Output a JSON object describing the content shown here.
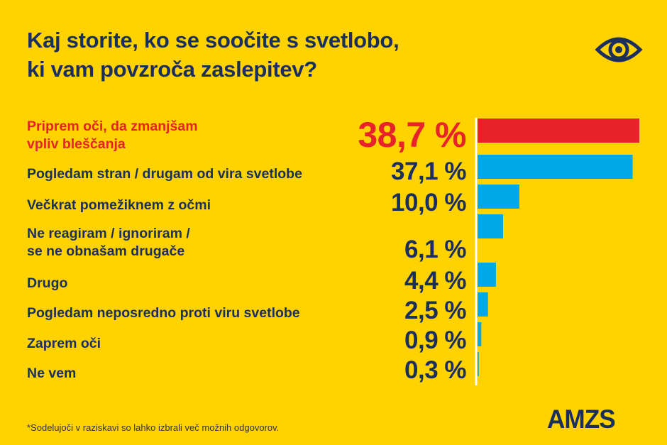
{
  "title": "Kaj storite, ko se soočite s svetlobo,\nki vam povzroča zaslepitev?",
  "footnote": "*Sodelujoči v raziskavi so lahko izbrali več možnih odgovorov.",
  "logo": "AMZS",
  "icon": "eye-icon",
  "colors": {
    "background": "#ffd200",
    "highlight": "#e8222a",
    "bar": "#00a8e8",
    "text": "#1b2f5e"
  },
  "chart_data": {
    "type": "bar",
    "orientation": "horizontal",
    "categories": [
      "Priprem oči, da zmanjšam\nvpliv bleščanja",
      "Pogledam stran / drugam od vira svetlobe",
      "Večkrat pomežiknem z očmi",
      "Ne reagiram / ignoriram /\nse ne obnašam drugače",
      "Drugo",
      "Pogledam neposredno proti viru svetlobe",
      "Zaprem oči",
      "Ne vem"
    ],
    "values": [
      38.7,
      37.1,
      10.0,
      6.1,
      4.4,
      2.5,
      0.9,
      0.3
    ],
    "value_labels": [
      "38,7 %",
      "37,1 %",
      "10,0 %",
      "6,1 %",
      "4,4 %",
      "2,5 %",
      "0,9 %",
      "0,3 %"
    ],
    "highlighted_index": 0,
    "unit": "%",
    "grid": "dashed row separators"
  }
}
